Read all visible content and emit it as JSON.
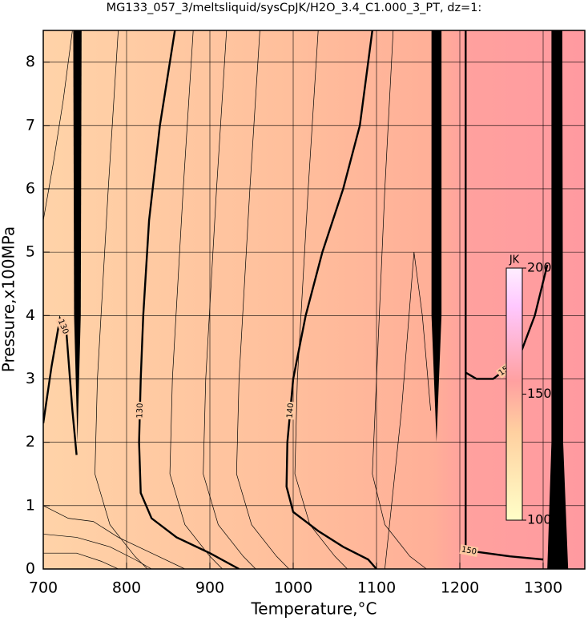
{
  "chart_data": {
    "type": "contour",
    "title": "MG133_057_3/meltsliquid/sysCpJK/H2O_3.4_C1.000_3_PT, dz=1:",
    "xlabel": "Temperature,°C",
    "ylabel": "Pressure,x100MPa",
    "xlim": [
      700,
      1350
    ],
    "ylim": [
      0,
      8.5
    ],
    "xticks": [
      700,
      800,
      900,
      1000,
      1100,
      1200,
      1300
    ],
    "yticks": [
      0,
      1,
      2,
      3,
      4,
      5,
      6,
      7,
      8
    ],
    "grid": true,
    "contours": [
      {
        "level": 130,
        "x": [
          858,
          840,
          827,
          820,
          817,
          815,
          817,
          830,
          860,
          900,
          935
        ],
        "y": [
          8.5,
          7,
          5.5,
          4,
          3,
          2,
          1.2,
          0.8,
          0.5,
          0.25,
          0
        ]
      },
      {
        "level": 140,
        "x": [
          1095,
          1080,
          1060,
          1035,
          1015,
          1000,
          993,
          992,
          1000,
          1030,
          1060,
          1090,
          1100
        ],
        "y": [
          8.5,
          7,
          6,
          5,
          4,
          3,
          2,
          1.3,
          0.9,
          0.6,
          0.35,
          0.15,
          0
        ]
      },
      {
        "level": 130,
        "x": [
          700,
          710,
          720,
          728,
          735,
          740
        ],
        "y": [
          2.3,
          3.2,
          3.95,
          3.7,
          2.5,
          1.8
        ]
      },
      {
        "level": 150,
        "x": [
          1207,
          1207,
          1207,
          1215,
          1260,
          1300
        ],
        "y": [
          8.5,
          2.3,
          0.3,
          0.28,
          0.2,
          0.15
        ]
      },
      {
        "level": 150,
        "x": [
          1207,
          1220,
          1240,
          1270,
          1290,
          1305
        ],
        "y": [
          3.1,
          3.0,
          3.0,
          3.3,
          4.0,
          4.8
        ]
      }
    ],
    "lines": [
      {
        "x": [
          700,
          712,
          724,
          735
        ],
        "y": [
          5.5,
          6.4,
          7.4,
          8.5
        ]
      },
      {
        "x": [
          700,
          730,
          760,
          790,
          830,
          870
        ],
        "y": [
          1.0,
          0.8,
          0.75,
          0.5,
          0.25,
          0
        ]
      },
      {
        "x": [
          700,
          740,
          780,
          810,
          830
        ],
        "y": [
          0.55,
          0.5,
          0.35,
          0.15,
          0
        ]
      },
      {
        "x": [
          700,
          740,
          770,
          790
        ],
        "y": [
          0.25,
          0.25,
          0.12,
          0
        ]
      },
      {
        "x": [
          790,
          778,
          765,
          762,
          780,
          810,
          825
        ],
        "y": [
          8.5,
          6,
          3,
          1.5,
          0.7,
          0.2,
          0
        ]
      },
      {
        "x": [
          880,
          868,
          855,
          852,
          870,
          900,
          915
        ],
        "y": [
          8.5,
          6,
          3,
          1.5,
          0.7,
          0.2,
          0
        ]
      },
      {
        "x": [
          920,
          908,
          895,
          892,
          910,
          940,
          955
        ],
        "y": [
          8.5,
          6,
          3,
          1.5,
          0.7,
          0.2,
          0
        ]
      },
      {
        "x": [
          960,
          948,
          935,
          932,
          950,
          980,
          995
        ],
        "y": [
          8.5,
          6,
          3,
          1.5,
          0.7,
          0.2,
          0
        ]
      },
      {
        "x": [
          1030,
          1018,
          1005,
          1002,
          1020,
          1050,
          1065
        ],
        "y": [
          8.5,
          6,
          3,
          1.5,
          0.7,
          0.2,
          0
        ]
      },
      {
        "x": [
          1120,
          1110,
          1100,
          1095,
          1110,
          1140,
          1160
        ],
        "y": [
          8.5,
          6,
          3,
          1.5,
          0.7,
          0.2,
          0
        ]
      },
      {
        "x": [
          1110,
          1130,
          1145,
          1155,
          1165
        ],
        "y": [
          0,
          2.5,
          5.0,
          4.0,
          2.5
        ]
      }
    ],
    "bands": [
      {
        "x": [
          736,
          746,
          745,
          741,
          737
        ],
        "y": [
          8.5,
          8.5,
          4,
          2.0,
          4
        ]
      },
      {
        "x": [
          1166,
          1178,
          1178,
          1172,
          1166
        ],
        "y": [
          8.5,
          8.5,
          4,
          2.0,
          4
        ]
      },
      {
        "x": [
          1310,
          1323,
          1324,
          1330,
          1305,
          1310
        ],
        "y": [
          8.5,
          8.5,
          2,
          0,
          0,
          2
        ]
      }
    ],
    "colorbar": {
      "label": "JK",
      "lim": [
        100,
        200
      ],
      "ticks": [
        100,
        150,
        200
      ]
    }
  }
}
